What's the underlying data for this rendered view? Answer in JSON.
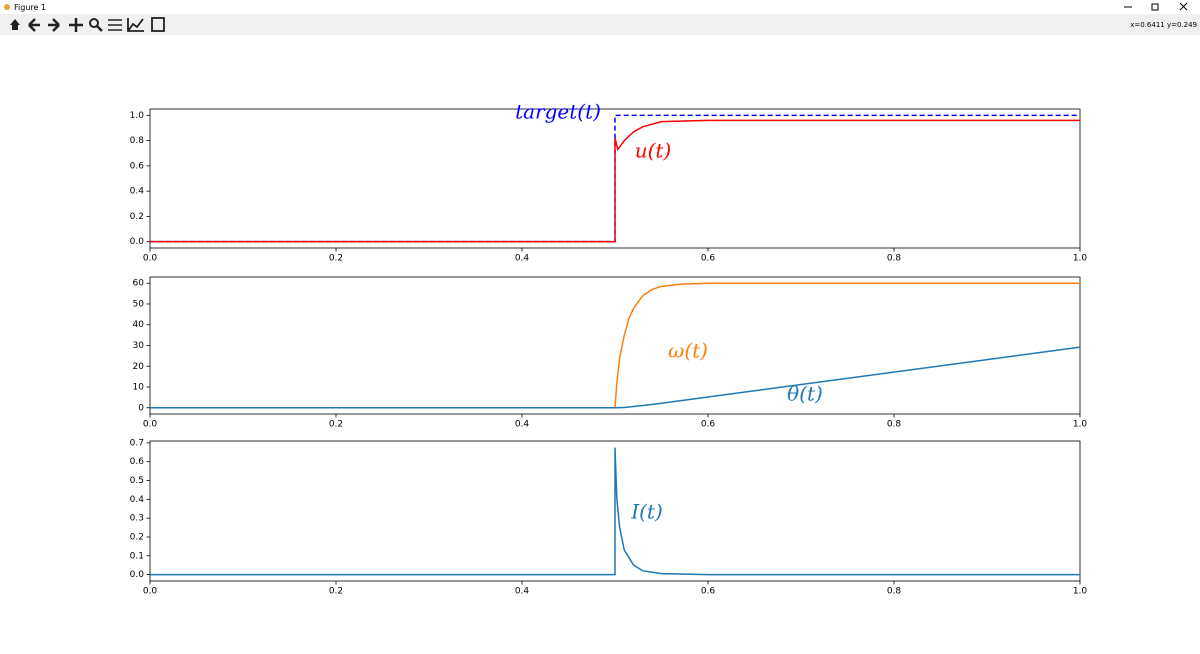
{
  "window": {
    "title": "Figure 1",
    "status": "x=0.6411 y=0.249"
  },
  "chart_data": [
    {
      "type": "line",
      "x": [
        0,
        0.5,
        0.5,
        0.503,
        0.51,
        0.52,
        0.53,
        0.55,
        0.6,
        1.0
      ],
      "series": [
        {
          "name": "target(t)",
          "color": "#0000ff",
          "linestyle": "dashed",
          "values": [
            0,
            0,
            1,
            1,
            1,
            1,
            1,
            1,
            1,
            1
          ]
        },
        {
          "name": "u(t)",
          "color": "#ff0000",
          "linestyle": "solid",
          "values": [
            0,
            0,
            0.82,
            0.73,
            0.8,
            0.87,
            0.91,
            0.95,
            0.96,
            0.96
          ]
        }
      ],
      "xlim": [
        0,
        1
      ],
      "xticks": [
        {
          "value": 0,
          "label": "0.0"
        },
        0.2,
        0.4,
        0.6,
        0.8,
        {
          "value": 1,
          "label": "1.0"
        }
      ],
      "ylim": [
        -0.05,
        1.05
      ],
      "yticks": [
        {
          "value": 0,
          "label": "0.0"
        },
        0.2,
        0.4,
        0.6,
        0.8,
        {
          "value": 1,
          "label": "1.0"
        }
      ],
      "grid": false
    },
    {
      "type": "line",
      "x": [
        0,
        0.5,
        0.502,
        0.505,
        0.51,
        0.515,
        0.52,
        0.53,
        0.54,
        0.55,
        0.57,
        0.6,
        1.0
      ],
      "series": [
        {
          "name": "ω(t)",
          "color": "#ff7f0e",
          "linestyle": "solid",
          "values": [
            0,
            0,
            12,
            24,
            35,
            43,
            48,
            54,
            57,
            58.5,
            59.5,
            60,
            60
          ]
        },
        {
          "name": "θ(t)",
          "color": "#1f77b4",
          "linestyle": "solid",
          "values": [
            0,
            0,
            0,
            0.05,
            0.15,
            0.35,
            0.6,
            1.1,
            1.65,
            2.2,
            3.4,
            5.2,
            29.2
          ]
        }
      ],
      "xlim": [
        0,
        1
      ],
      "xticks": [
        {
          "value": 0,
          "label": "0.0"
        },
        0.2,
        0.4,
        0.6,
        0.8,
        {
          "value": 1,
          "label": "1.0"
        }
      ],
      "ylim": [
        -3,
        63
      ],
      "yticks": [
        0,
        10,
        20,
        30,
        40,
        50,
        60
      ],
      "grid": false
    },
    {
      "type": "line",
      "x": [
        0,
        0.5,
        0.5,
        0.502,
        0.505,
        0.51,
        0.52,
        0.53,
        0.55,
        0.6,
        1.0
      ],
      "series": [
        {
          "name": "I(t)",
          "color": "#1f77b4",
          "linestyle": "solid",
          "values": [
            0,
            0,
            0.675,
            0.4,
            0.25,
            0.13,
            0.05,
            0.02,
            0.005,
            0,
            0
          ]
        }
      ],
      "xlim": [
        0,
        1
      ],
      "xticks": [
        {
          "value": 0,
          "label": "0.0"
        },
        0.2,
        0.4,
        0.6,
        0.8,
        {
          "value": 1,
          "label": "1.0"
        }
      ],
      "ylim": [
        -0.034,
        0.71
      ],
      "yticks": [
        {
          "value": 0,
          "label": "0.0"
        },
        0.1,
        0.2,
        0.3,
        0.4,
        0.5,
        0.6,
        0.7
      ],
      "grid": false
    }
  ]
}
